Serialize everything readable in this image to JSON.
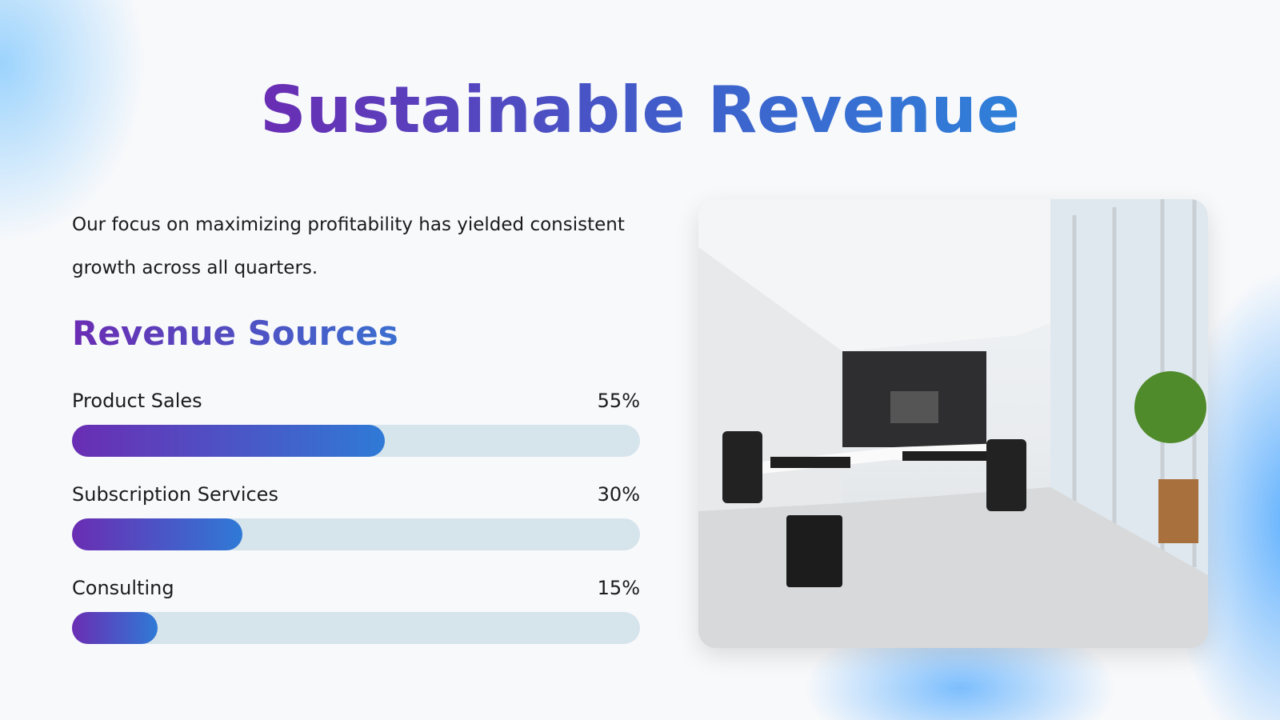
{
  "header": {
    "title": "Sustainable Revenue"
  },
  "intro": "Our focus on maximizing profitability has yielded consistent growth across all quarters.",
  "chart_data": {
    "type": "bar",
    "title": "Revenue Sources",
    "categories": [
      "Product Sales",
      "Subscription Services",
      "Consulting"
    ],
    "values": [
      55,
      30,
      15
    ],
    "value_labels": [
      "55%",
      "30%",
      "15%"
    ],
    "xlim": [
      0,
      100
    ]
  }
}
